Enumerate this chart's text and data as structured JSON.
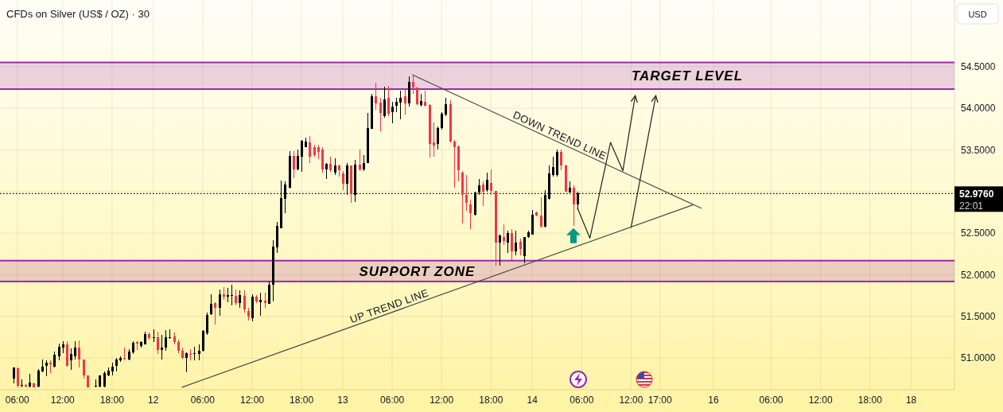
{
  "chart_data": {
    "type": "candlestick",
    "title": "CFDs on Silver (US$ / OZ) · 30",
    "categories": [
      null,
      "06:00",
      null,
      null,
      null,
      null,
      null,
      null,
      null,
      null,
      null,
      null,
      "12:00",
      null,
      null,
      null,
      null,
      null,
      null,
      null,
      null,
      null,
      null,
      null,
      "18:00",
      null,
      null,
      null,
      null,
      null,
      null,
      null,
      null,
      null,
      "12",
      null,
      null,
      null,
      null,
      null,
      null,
      null,
      null,
      null,
      null,
      null,
      "06:00",
      null,
      null,
      null,
      null,
      null,
      null,
      null,
      null,
      null,
      null,
      null,
      "12:00",
      null,
      null,
      null,
      null,
      null,
      null,
      null,
      null,
      null,
      null,
      null,
      "18:00",
      null,
      null,
      null,
      null,
      null,
      null,
      null,
      null,
      null,
      "13",
      null,
      null,
      null,
      null,
      null,
      null,
      null,
      null,
      null,
      null,
      null,
      "06:00",
      null,
      null,
      null,
      null,
      null,
      null,
      null,
      null,
      null,
      null,
      null,
      "12:00",
      null,
      null,
      null,
      null,
      null,
      null,
      null,
      null,
      null,
      null,
      null,
      "18:00",
      null,
      null,
      null,
      null,
      null,
      null,
      null,
      null,
      null,
      "14",
      null,
      null,
      null,
      null,
      null,
      null,
      null,
      null,
      null,
      null,
      null,
      "06:00",
      null,
      null,
      null,
      null,
      null,
      null,
      null,
      null,
      null,
      null,
      null,
      "12:00",
      null,
      null,
      null,
      null,
      null,
      null,
      "17:00",
      null,
      null,
      null,
      null,
      null,
      null,
      null,
      null,
      null,
      null,
      null,
      null,
      "16",
      null,
      null,
      null,
      null,
      null,
      null,
      null,
      null,
      null,
      null,
      null,
      null,
      null,
      "06:00",
      null,
      null,
      null,
      null,
      null,
      null,
      null,
      null,
      null,
      null,
      null,
      "12:00",
      null,
      null,
      null,
      null,
      null,
      null,
      null,
      null,
      null,
      null,
      null,
      "18:00",
      null,
      null,
      null,
      null,
      null,
      null,
      null,
      null,
      null,
      "18",
      null,
      null,
      null,
      null,
      null,
      null,
      null,
      null,
      null,
      null
    ],
    "ohlc": [
      [
        50.75,
        50.89,
        50.7,
        50.89
      ],
      [
        50.88,
        50.89,
        50.65,
        50.67
      ],
      [
        50.67,
        50.74,
        50.65,
        50.68
      ],
      [
        50.68,
        50.69,
        50.65,
        50.66
      ],
      [
        50.66,
        50.81,
        50.65,
        50.71
      ],
      [
        50.7,
        50.71,
        50.65,
        50.65
      ],
      [
        50.66,
        50.87,
        50.65,
        50.85
      ],
      [
        50.84,
        50.98,
        50.83,
        50.9
      ],
      [
        50.91,
        50.97,
        50.78,
        50.94
      ],
      [
        50.94,
        50.97,
        50.82,
        50.93
      ],
      [
        50.9,
        51.08,
        50.89,
        51.04
      ],
      [
        51.02,
        51.17,
        50.97,
        51.14
      ],
      [
        51.13,
        51.2,
        51.06,
        51.16
      ],
      [
        51.16,
        51.2,
        50.9,
        50.91
      ],
      [
        50.97,
        51.12,
        50.86,
        51.05
      ],
      [
        51.02,
        51.2,
        50.98,
        51.13
      ],
      [
        51.13,
        51.21,
        50.89,
        50.98
      ],
      [
        50.98,
        50.98,
        50.75,
        50.79
      ],
      [
        50.79,
        50.79,
        50.65,
        50.65
      ],
      null,
      [
        50.66,
        50.74,
        50.65,
        50.67
      ],
      [
        50.66,
        50.79,
        50.65,
        50.79
      ],
      [
        50.66,
        50.84,
        50.65,
        50.82
      ],
      [
        50.79,
        50.89,
        50.78,
        50.85
      ],
      [
        50.84,
        50.94,
        50.79,
        50.9
      ],
      [
        50.91,
        51.0,
        50.84,
        50.98
      ],
      [
        50.97,
        51.02,
        50.95,
        51.0
      ],
      [
        51.0,
        51.13,
        50.97,
        50.99
      ],
      [
        50.98,
        51.11,
        50.97,
        51.08
      ],
      [
        51.07,
        51.2,
        51.05,
        51.18
      ],
      [
        51.19,
        51.2,
        51.1,
        51.17
      ],
      [
        51.15,
        51.2,
        51.13,
        51.19
      ],
      [
        51.16,
        51.32,
        51.16,
        51.29
      ],
      [
        51.29,
        51.31,
        51.22,
        51.24
      ],
      [
        51.24,
        51.35,
        51.19,
        51.25
      ],
      [
        51.25,
        51.32,
        51.05,
        51.1
      ],
      [
        51.1,
        51.28,
        50.98,
        51.13
      ],
      [
        51.13,
        51.34,
        51.09,
        51.25
      ],
      [
        51.24,
        51.35,
        51.23,
        51.25
      ],
      [
        51.26,
        51.31,
        51.16,
        51.19
      ],
      [
        51.19,
        51.22,
        51.06,
        51.09
      ],
      [
        51.09,
        51.13,
        50.99,
        51.0
      ],
      [
        51.0,
        51.07,
        50.83,
        51.06
      ],
      [
        51.05,
        51.11,
        50.97,
        51.04
      ],
      [
        51.05,
        51.14,
        50.97,
        51.06
      ],
      [
        51.05,
        51.16,
        50.97,
        51.09
      ],
      [
        51.09,
        51.34,
        51.08,
        51.33
      ],
      [
        51.3,
        51.55,
        51.28,
        51.52
      ],
      [
        51.53,
        51.77,
        51.52,
        51.65
      ],
      [
        51.66,
        51.67,
        51.4,
        51.6
      ],
      [
        51.6,
        51.82,
        51.51,
        51.77
      ],
      [
        51.77,
        51.85,
        51.7,
        51.74
      ],
      [
        51.74,
        51.84,
        51.67,
        51.76
      ],
      [
        51.75,
        51.88,
        51.63,
        51.76
      ],
      [
        51.75,
        51.82,
        51.63,
        51.66
      ],
      [
        51.66,
        51.81,
        51.6,
        51.76
      ],
      [
        51.75,
        51.81,
        51.55,
        51.58
      ],
      [
        51.57,
        51.6,
        51.45,
        51.5
      ],
      [
        51.48,
        51.77,
        51.44,
        51.74
      ],
      [
        51.74,
        51.76,
        51.66,
        51.68
      ],
      [
        51.67,
        51.79,
        51.51,
        51.7
      ],
      [
        51.69,
        51.79,
        51.6,
        51.66
      ],
      [
        51.65,
        51.92,
        51.65,
        51.88
      ],
      [
        51.88,
        52.42,
        51.68,
        52.34
      ],
      [
        52.33,
        52.64,
        52.26,
        52.59
      ],
      [
        52.56,
        53.13,
        52.56,
        52.92
      ],
      [
        52.91,
        53.12,
        52.74,
        53.08
      ],
      [
        53.05,
        53.49,
        53.04,
        53.43
      ],
      [
        53.43,
        53.49,
        53.16,
        53.27
      ],
      [
        53.27,
        53.5,
        53.26,
        53.43
      ],
      [
        53.42,
        53.62,
        53.24,
        53.61
      ],
      [
        53.53,
        53.65,
        53.53,
        53.6
      ],
      [
        53.59,
        53.67,
        53.34,
        53.42
      ],
      [
        53.53,
        53.56,
        53.42,
        53.44
      ],
      [
        53.53,
        53.56,
        53.39,
        53.48
      ],
      [
        53.5,
        53.53,
        53.23,
        53.27
      ],
      [
        53.27,
        53.34,
        53.15,
        53.33
      ],
      [
        53.33,
        53.42,
        53.24,
        53.26
      ],
      [
        53.23,
        53.4,
        53.2,
        53.31
      ],
      [
        53.31,
        53.32,
        53.18,
        53.26
      ],
      [
        53.22,
        53.25,
        53.02,
        53.09
      ],
      [
        53.09,
        53.34,
        52.96,
        53.31
      ],
      [
        53.31,
        53.31,
        52.86,
        52.97
      ],
      [
        52.96,
        53.38,
        52.87,
        53.32
      ],
      [
        53.32,
        53.5,
        53.25,
        53.27
      ],
      [
        53.27,
        53.44,
        53.25,
        53.34
      ],
      [
        53.34,
        53.94,
        53.34,
        53.76
      ],
      [
        53.75,
        54.17,
        53.75,
        54.14
      ],
      [
        54.14,
        54.31,
        53.98,
        54.06
      ],
      [
        54.07,
        54.13,
        53.72,
        53.94
      ],
      [
        53.91,
        54.26,
        53.89,
        54.11
      ],
      [
        54.13,
        54.27,
        53.91,
        53.93
      ],
      [
        53.95,
        54.08,
        53.82,
        54.02
      ],
      [
        54.03,
        54.13,
        53.95,
        54.08
      ],
      [
        54.07,
        54.21,
        53.87,
        54.13
      ],
      [
        54.14,
        54.22,
        53.92,
        54.06
      ],
      [
        54.06,
        54.38,
        54.02,
        54.32
      ],
      [
        54.32,
        54.41,
        54.17,
        54.25
      ],
      [
        54.25,
        54.25,
        54.04,
        54.05
      ],
      [
        54.04,
        54.17,
        54.02,
        54.09
      ],
      [
        54.08,
        54.21,
        54.02,
        54.03
      ],
      [
        54.04,
        54.05,
        53.41,
        53.57
      ],
      [
        53.59,
        53.83,
        53.42,
        53.55
      ],
      [
        53.57,
        53.78,
        53.5,
        53.76
      ],
      [
        53.76,
        53.95,
        53.74,
        53.93
      ],
      [
        53.92,
        54.13,
        53.91,
        54.05
      ],
      [
        54.05,
        54.1,
        53.59,
        53.6
      ],
      [
        53.6,
        53.62,
        53.05,
        53.53
      ],
      [
        53.54,
        53.55,
        53.12,
        53.26
      ],
      [
        53.23,
        53.25,
        52.62,
        52.96
      ],
      [
        52.96,
        53.2,
        52.77,
        52.86
      ],
      [
        52.85,
        52.9,
        52.55,
        52.74
      ],
      [
        52.72,
        53.0,
        52.71,
        52.99
      ],
      [
        52.99,
        53.15,
        52.96,
        53.07
      ],
      [
        53.08,
        53.12,
        52.83,
        53.0
      ],
      [
        53.02,
        53.23,
        53.0,
        53.14
      ],
      [
        53.1,
        53.27,
        52.96,
        53.01
      ],
      [
        53.01,
        53.01,
        52.11,
        52.39
      ],
      [
        52.39,
        52.48,
        52.11,
        52.47
      ],
      [
        52.45,
        52.61,
        52.36,
        52.41
      ],
      [
        52.39,
        52.53,
        52.26,
        52.5
      ],
      [
        52.5,
        52.55,
        52.18,
        52.28
      ],
      [
        52.28,
        52.53,
        52.23,
        52.39
      ],
      [
        52.4,
        52.43,
        52.23,
        52.31
      ],
      [
        52.22,
        52.45,
        52.14,
        52.45
      ],
      [
        52.45,
        52.53,
        52.44,
        52.51
      ],
      [
        52.48,
        52.78,
        52.48,
        52.72
      ],
      [
        52.75,
        52.76,
        52.7,
        52.71
      ],
      [
        52.71,
        52.93,
        52.57,
        52.58
      ],
      [
        52.58,
        53.02,
        52.57,
        52.96
      ],
      [
        52.91,
        53.31,
        52.9,
        53.22
      ],
      [
        53.2,
        53.42,
        53.18,
        53.29
      ],
      [
        53.2,
        53.5,
        53.18,
        53.48
      ],
      [
        53.48,
        53.5,
        53.26,
        53.31
      ],
      [
        53.31,
        53.32,
        53.0,
        53.0
      ],
      [
        52.99,
        53.12,
        52.99,
        53.05
      ],
      [
        53.05,
        53.07,
        52.59,
        52.85
      ],
      [
        52.85,
        53.0,
        52.78,
        52.976
      ],
      null,
      null,
      null,
      null,
      null,
      null,
      null,
      null,
      null,
      null,
      null,
      null,
      null,
      null,
      null,
      null,
      null,
      null,
      null,
      null,
      null,
      null,
      null,
      null,
      null,
      null,
      null,
      null,
      null,
      null,
      null,
      null,
      null,
      null,
      null,
      null,
      null,
      null,
      null,
      null,
      null,
      null,
      null,
      null,
      null,
      null,
      null,
      null,
      null,
      null,
      null,
      null,
      null,
      null,
      null,
      null,
      null,
      null,
      null,
      null,
      null,
      null,
      null,
      null,
      null,
      null,
      null,
      null,
      null,
      null,
      null,
      null,
      null,
      null,
      null,
      null,
      null,
      null,
      null,
      null,
      null,
      null,
      null,
      null,
      null,
      null,
      null,
      null,
      null,
      null,
      null
    ],
    "colors": [
      "#000000",
      "#f23645",
      "#000000",
      "#f23645",
      "#000000",
      "#f23645",
      "#000000",
      "#000000",
      "#000000",
      "#f23645",
      "#000000",
      "#000000",
      "#000000",
      "#f23645",
      "#000000",
      "#000000",
      "#f23645",
      "#f23645",
      "#f23645",
      null,
      "#000000",
      "#000000",
      "#000000",
      "#000000",
      "#000000",
      "#000000",
      "#000000",
      "#f23645",
      "#000000",
      "#000000",
      "#f23645",
      "#000000",
      "#000000",
      "#f23645",
      "#000000",
      "#f23645",
      "#000000",
      "#000000",
      "#000000",
      "#f23645",
      "#f23645",
      "#f23645",
      "#000000",
      "#f23645",
      "#000000",
      "#000000",
      "#000000",
      "#000000",
      "#000000",
      "#f23645",
      "#000000",
      "#f23645",
      "#000000",
      "#000000",
      "#f23645",
      "#000000",
      "#f23645",
      "#f23645",
      "#000000",
      "#f23645",
      "#000000",
      "#f23645",
      "#000000",
      "#000000",
      "#000000",
      "#000000",
      "#000000",
      "#000000",
      "#f23645",
      "#000000",
      "#000000",
      "#000000",
      "#f23645",
      "#f23645",
      "#f23645",
      "#f23645",
      "#000000",
      "#f23645",
      "#000000",
      "#f23645",
      "#f23645",
      "#000000",
      "#f23645",
      "#000000",
      "#f23645",
      "#000000",
      "#000000",
      "#000000",
      "#f23645",
      "#f23645",
      "#000000",
      "#f23645",
      "#000000",
      "#000000",
      "#000000",
      "#f23645",
      "#000000",
      "#f23645",
      "#f23645",
      "#000000",
      "#f23645",
      "#f23645",
      "#f23645",
      "#000000",
      "#000000",
      "#000000",
      "#f23645",
      "#f23645",
      "#f23645",
      "#f23645",
      "#f23645",
      "#f23645",
      "#000000",
      "#000000",
      "#f23645",
      "#000000",
      "#f23645",
      "#f23645",
      "#000000",
      "#f23645",
      "#000000",
      "#f23645",
      "#000000",
      "#f23645",
      "#000000",
      "#000000",
      "#000000",
      "#f23645",
      "#f23645",
      "#000000",
      "#000000",
      "#000000",
      "#000000",
      "#f23645",
      "#f23645",
      "#000000",
      "#f23645",
      "#000000",
      null,
      null,
      null,
      null,
      null,
      null,
      null,
      null,
      null,
      null,
      null,
      null,
      null,
      null,
      null,
      null,
      null,
      null,
      null,
      null,
      null,
      null,
      null,
      null,
      null,
      null,
      null,
      null,
      null,
      null,
      null,
      null,
      null,
      null,
      null,
      null,
      null,
      null,
      null,
      null,
      null,
      null,
      null,
      null,
      null,
      null,
      null,
      null,
      null,
      null,
      null,
      null,
      null,
      null,
      null,
      null,
      null,
      null,
      null,
      null,
      null,
      null,
      null,
      null,
      null,
      null,
      null,
      null,
      null,
      null,
      null,
      null,
      null,
      null,
      null,
      null,
      null,
      null,
      null,
      null,
      null,
      null,
      null,
      null,
      null,
      null,
      null,
      null,
      null,
      null,
      null
    ],
    "series": [
      {
        "type": "line",
        "name": "DOWN TREND LINE",
        "color": "#4a4a4a",
        "values": [
          null,
          null,
          null,
          null,
          null,
          null,
          null,
          null,
          null,
          null,
          null,
          null,
          null,
          null,
          null,
          null,
          null,
          null,
          null,
          null,
          null,
          null,
          null,
          null,
          null,
          null,
          null,
          null,
          null,
          null,
          null,
          null,
          null,
          null,
          null,
          null,
          null,
          null,
          null,
          null,
          null,
          null,
          null,
          null,
          null,
          null,
          null,
          null,
          null,
          null,
          null,
          null,
          null,
          null,
          null,
          null,
          null,
          null,
          null,
          null,
          null,
          null,
          null,
          null,
          null,
          null,
          null,
          null,
          null,
          null,
          null,
          null,
          null,
          null,
          null,
          null,
          null,
          null,
          null,
          null,
          null,
          null,
          null,
          null,
          null,
          null,
          null,
          null,
          null,
          null,
          null,
          null,
          null,
          null,
          null,
          null,
          null,
          54.4,
          null,
          null,
          null,
          null,
          null,
          null,
          null,
          null,
          null,
          null,
          null,
          null,
          null,
          null,
          null,
          null,
          null,
          null,
          null,
          null,
          null,
          null,
          null,
          null,
          null,
          null,
          null,
          null,
          null,
          null,
          null,
          null,
          null,
          null,
          null,
          null,
          null,
          null,
          null,
          null,
          null,
          null,
          null,
          null,
          null,
          null,
          null,
          null,
          null,
          null,
          null,
          null,
          null,
          null,
          null,
          null,
          null,
          null,
          null,
          null,
          null,
          null,
          null,
          null,
          null,
          null,
          null,
          null,
          null,
          52.8,
          null,
          null,
          null,
          null,
          null,
          null,
          null,
          null,
          null,
          null,
          null,
          null,
          null,
          null,
          null,
          null,
          null,
          null,
          null,
          null,
          null,
          null,
          null,
          null,
          null,
          null,
          null,
          null,
          null,
          null,
          null,
          null,
          null,
          null,
          null,
          null,
          null,
          null,
          null,
          null,
          null,
          null,
          null,
          null,
          null,
          null,
          null,
          null,
          null,
          null,
          null,
          null,
          null,
          null,
          null,
          null,
          null,
          null,
          null,
          null,
          null
        ]
      },
      {
        "type": "line",
        "name": "UP TREND LINE",
        "color": "#4a4a4a",
        "values": [
          null,
          null,
          null,
          null,
          null,
          null,
          null,
          null,
          null,
          null,
          null,
          null,
          null,
          null,
          null,
          null,
          null,
          null,
          null,
          null,
          null,
          null,
          null,
          null,
          null,
          null,
          null,
          null,
          null,
          null,
          null,
          null,
          null,
          null,
          null,
          null,
          null,
          null,
          null,
          null,
          null,
          50.65,
          null,
          null,
          null,
          null,
          null,
          null,
          null,
          null,
          null,
          null,
          null,
          null,
          null,
          null,
          null,
          null,
          null,
          null,
          null,
          null,
          null,
          null,
          null,
          null,
          null,
          null,
          null,
          null,
          null,
          null,
          null,
          null,
          null,
          null,
          null,
          null,
          null,
          null,
          null,
          null,
          null,
          null,
          null,
          null,
          null,
          null,
          null,
          null,
          null,
          null,
          null,
          null,
          null,
          null,
          null,
          null,
          null,
          null,
          null,
          null,
          null,
          null,
          null,
          null,
          null,
          null,
          null,
          null,
          null,
          null,
          null,
          null,
          null,
          null,
          null,
          null,
          null,
          null,
          null,
          null,
          null,
          null,
          null,
          null,
          null,
          null,
          null,
          null,
          null,
          null,
          null,
          null,
          null,
          null,
          null,
          null,
          null,
          null,
          null,
          null,
          null,
          null,
          null,
          null,
          null,
          null,
          null,
          null,
          null,
          null,
          null,
          null,
          null,
          null,
          null,
          null,
          null,
          null,
          null,
          null,
          null,
          null,
          null,
          52.84,
          null,
          null,
          null,
          null,
          null,
          null,
          null,
          null,
          null,
          null,
          null,
          null,
          null,
          null,
          null,
          null,
          null,
          null,
          null,
          null,
          null,
          null,
          null,
          null,
          null,
          null,
          null,
          null,
          null,
          null,
          null,
          null,
          null,
          null,
          null,
          null,
          null,
          null,
          null,
          null,
          null,
          null,
          null,
          null,
          null,
          null,
          null,
          null,
          null,
          null,
          null,
          null,
          null,
          null,
          null,
          null,
          null,
          null,
          null,
          null,
          null,
          null,
          null
        ]
      },
      {
        "type": "line",
        "color": "#222222",
        "values": [
          null,
          null,
          null,
          null,
          null,
          null,
          null,
          null,
          null,
          null,
          null,
          null,
          null,
          null,
          null,
          null,
          null,
          null,
          null,
          null,
          null,
          null,
          null,
          null,
          null,
          null,
          null,
          null,
          null,
          null,
          null,
          null,
          null,
          null,
          null,
          null,
          null,
          null,
          null,
          null,
          null,
          null,
          null,
          null,
          null,
          null,
          null,
          null,
          null,
          null,
          null,
          null,
          null,
          null,
          null,
          null,
          null,
          null,
          null,
          null,
          null,
          null,
          null,
          null,
          null,
          null,
          null,
          null,
          null,
          null,
          null,
          null,
          null,
          null,
          null,
          null,
          null,
          null,
          null,
          null,
          null,
          null,
          null,
          null,
          null,
          null,
          null,
          null,
          null,
          null,
          null,
          null,
          null,
          null,
          null,
          null,
          null,
          null,
          null,
          null,
          null,
          null,
          null,
          null,
          null,
          null,
          null,
          null,
          null,
          null,
          null,
          null,
          null,
          null,
          null,
          null,
          null,
          null,
          null,
          null,
          null,
          null,
          null,
          null,
          null,
          null,
          null,
          null,
          null,
          null,
          null,
          null,
          null,
          null,
          null,
          null,
          null,
          52.8,
          null,
          null,
          52.44,
          null,
          null,
          null,
          null,
          53.59,
          null,
          null,
          53.25,
          null,
          null,
          54.15,
          null,
          null,
          null,
          null,
          null,
          null,
          null,
          null,
          null,
          null,
          null,
          null,
          null,
          null,
          null,
          null,
          null,
          null,
          null,
          null,
          null,
          null,
          null,
          null,
          null,
          null,
          null,
          null,
          null,
          null,
          null,
          null,
          null,
          null,
          null,
          null,
          null,
          null,
          null,
          null,
          null,
          null,
          null,
          null,
          null,
          null,
          null,
          null,
          null,
          null,
          null,
          null,
          null,
          null,
          null,
          null,
          null,
          null,
          null,
          null,
          null,
          null,
          null,
          null,
          null,
          null,
          null,
          null,
          null,
          null,
          null,
          null,
          null,
          null,
          null,
          null,
          null
        ]
      },
      {
        "type": "line",
        "color": "#222222",
        "values": [
          null,
          null,
          null,
          null,
          null,
          null,
          null,
          null,
          null,
          null,
          null,
          null,
          null,
          null,
          null,
          null,
          null,
          null,
          null,
          null,
          null,
          null,
          null,
          null,
          null,
          null,
          null,
          null,
          null,
          null,
          null,
          null,
          null,
          null,
          null,
          null,
          null,
          null,
          null,
          null,
          null,
          null,
          null,
          null,
          null,
          null,
          null,
          null,
          null,
          null,
          null,
          null,
          null,
          null,
          null,
          null,
          null,
          null,
          null,
          null,
          null,
          null,
          null,
          null,
          null,
          null,
          null,
          null,
          null,
          null,
          null,
          null,
          null,
          null,
          null,
          null,
          null,
          null,
          null,
          null,
          null,
          null,
          null,
          null,
          null,
          null,
          null,
          null,
          null,
          null,
          null,
          null,
          null,
          null,
          null,
          null,
          null,
          null,
          null,
          null,
          null,
          null,
          null,
          null,
          null,
          null,
          null,
          null,
          null,
          null,
          null,
          null,
          null,
          null,
          null,
          null,
          null,
          null,
          null,
          null,
          null,
          null,
          null,
          null,
          null,
          null,
          null,
          null,
          null,
          null,
          null,
          null,
          null,
          null,
          null,
          null,
          null,
          null,
          null,
          null,
          null,
          null,
          null,
          null,
          null,
          null,
          null,
          null,
          null,
          null,
          52.57,
          null,
          null,
          null,
          null,
          null,
          54.15,
          null,
          null,
          null,
          null,
          null,
          null,
          null,
          null,
          null,
          null,
          null,
          null,
          null,
          null,
          null,
          null,
          null,
          null,
          null,
          null,
          null,
          null,
          null,
          null,
          null,
          null,
          null,
          null,
          null,
          null,
          null,
          null,
          null,
          null,
          null,
          null,
          null,
          null,
          null,
          null,
          null,
          null,
          null,
          null,
          null,
          null,
          null,
          null,
          null,
          null,
          null,
          null,
          null,
          null,
          null,
          null,
          null,
          null,
          null,
          null,
          null,
          null,
          null,
          null,
          null,
          null,
          null,
          null,
          null,
          null,
          null,
          null
        ]
      }
    ],
    "ylim": [
      50.62,
      55.3
    ],
    "yticks": [
      {
        "value": 51,
        "label": "51.0000"
      },
      {
        "value": 51.5,
        "label": "51.5000"
      },
      {
        "value": 52,
        "label": "52.0000"
      },
      {
        "value": 52.5,
        "label": "52.5000"
      },
      {
        "value": 53,
        "label": null
      },
      {
        "value": 53.5,
        "label": "53.5000"
      },
      {
        "value": 54,
        "label": "54.0000"
      },
      {
        "value": 54.5,
        "label": "54.5000"
      }
    ],
    "grid": true,
    "bands": [
      {
        "axis": "y",
        "from": 51.92,
        "to": 52.17,
        "label": "SUPPORT ZONE",
        "color": "#9c27b0"
      },
      {
        "axis": "y",
        "from": 54.23,
        "to": 54.55,
        "label": "TARGET LEVEL",
        "color": "#9c27b0"
      }
    ],
    "ref_lines": [
      {
        "axis": "y",
        "value": 52.976,
        "label": "52.9760",
        "color": "#000000",
        "line_style": "dotted"
      }
    ],
    "annotations": [
      "USD",
      "22:01"
    ]
  }
}
